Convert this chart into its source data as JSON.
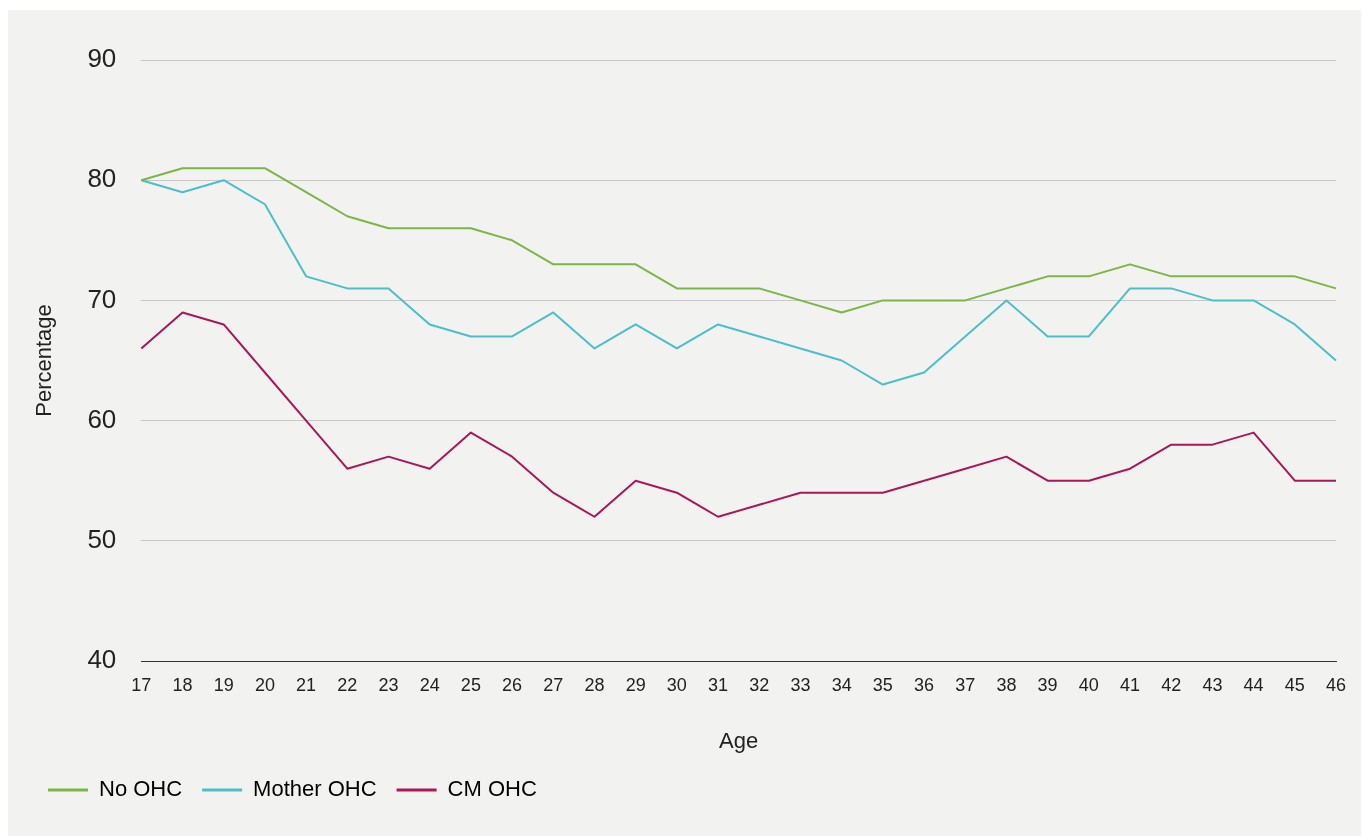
{
  "chart_data": {
    "type": "line",
    "xlabel": "Age",
    "ylabel": "Percentage",
    "categories": [
      "17",
      "18",
      "19",
      "20",
      "21",
      "22",
      "23",
      "24",
      "25",
      "26",
      "27",
      "28",
      "29",
      "30",
      "31",
      "32",
      "33",
      "34",
      "35",
      "36",
      "37",
      "38",
      "39",
      "40",
      "41",
      "42",
      "43",
      "44",
      "45",
      "46"
    ],
    "series": [
      {
        "name": "No OHC",
        "color": "#7ab648",
        "values": [
          80,
          81,
          81,
          81,
          79,
          77,
          76,
          76,
          76,
          75,
          73,
          73,
          73,
          71,
          71,
          71,
          70,
          69,
          70,
          70,
          70,
          71,
          72,
          72,
          73,
          72,
          72,
          72,
          72,
          71
        ]
      },
      {
        "name": "Mother OHC",
        "color": "#4bbfc8",
        "values": [
          80,
          79,
          80,
          78,
          72,
          71,
          71,
          68,
          67,
          67,
          69,
          66,
          68,
          66,
          68,
          67,
          66,
          65,
          63,
          64,
          67,
          70,
          67,
          67,
          71,
          71,
          70,
          70,
          68,
          65
        ]
      },
      {
        "name": "CM OHC",
        "color": "#a8185a",
        "values": [
          66,
          69,
          68,
          64,
          60,
          56,
          57,
          56,
          59,
          57,
          54,
          52,
          55,
          54,
          52,
          53,
          54,
          54,
          54,
          55,
          56,
          57,
          55,
          55,
          56,
          58,
          58,
          59,
          55,
          55
        ]
      }
    ],
    "ylim": [
      40,
      90
    ],
    "yticks": [
      40,
      50,
      60,
      70,
      80,
      90
    ],
    "grid": "y",
    "legend": "bottom",
    "marker": "none",
    "line_style": "solid"
  }
}
